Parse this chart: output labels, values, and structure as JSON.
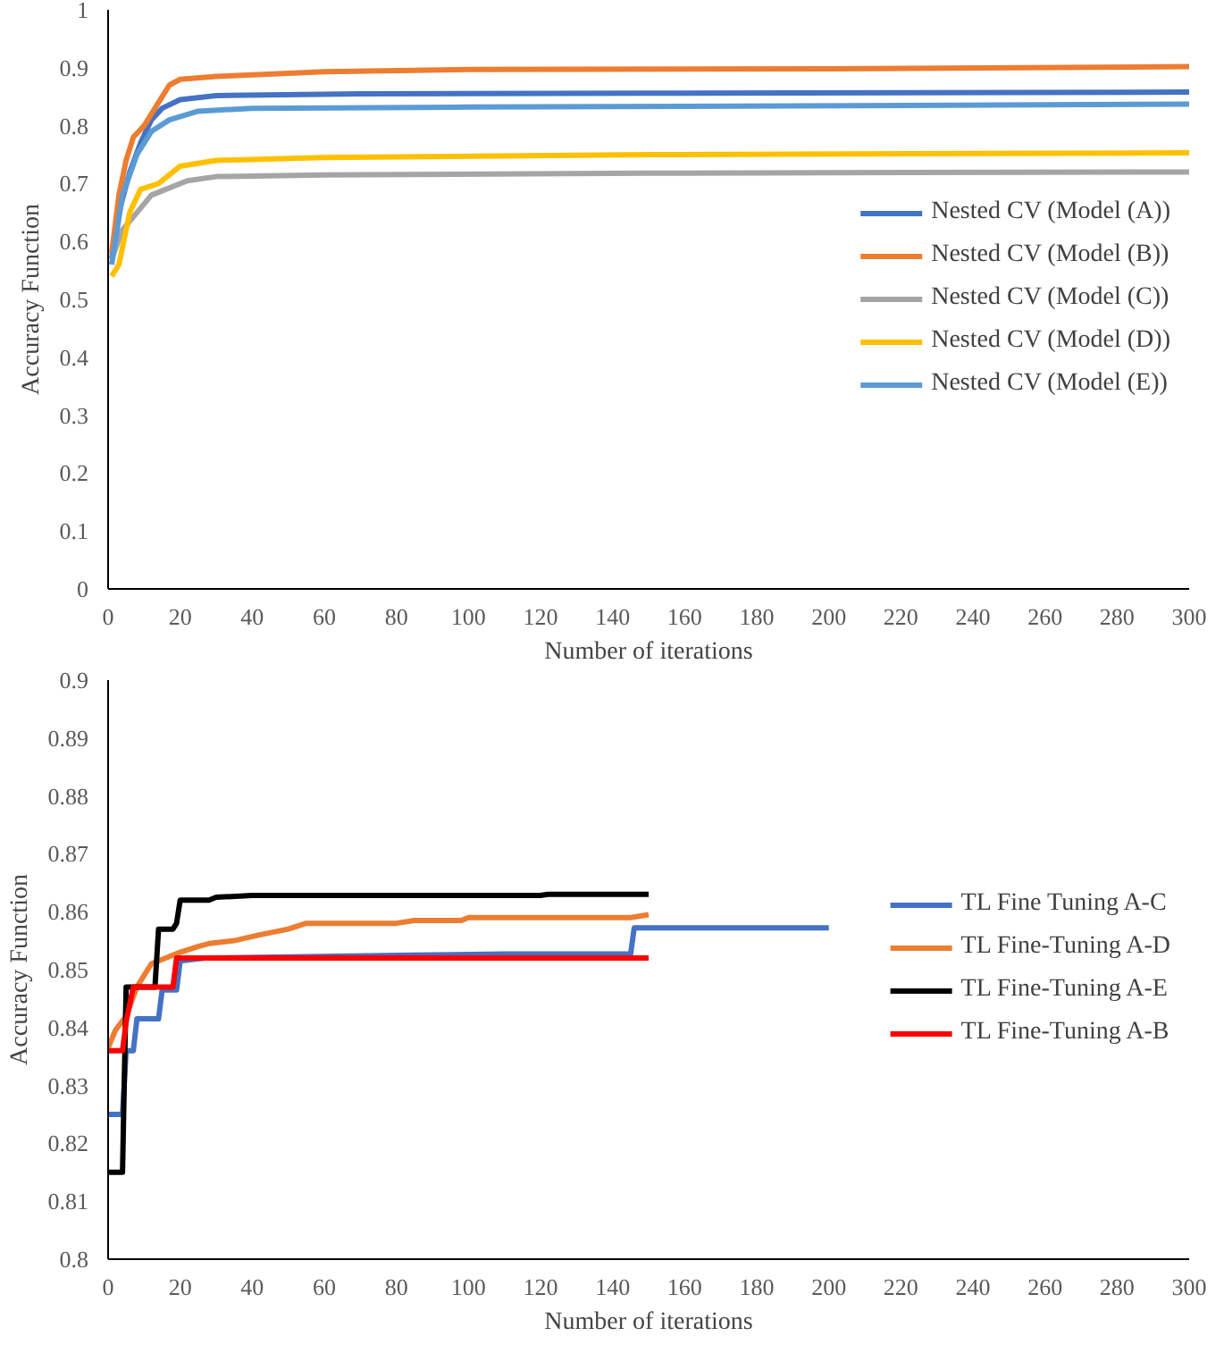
{
  "chart_data": [
    {
      "type": "line",
      "xlabel": "Number of iterations",
      "ylabel": "Accuracy Function",
      "xlim": [
        0,
        300
      ],
      "ylim": [
        0,
        1
      ],
      "xticks": [
        0,
        20,
        40,
        60,
        80,
        100,
        120,
        140,
        160,
        180,
        200,
        220,
        240,
        260,
        280,
        300
      ],
      "yticks": [
        0,
        0.1,
        0.2,
        0.3,
        0.4,
        0.5,
        0.6,
        0.7,
        0.8,
        0.9,
        1
      ],
      "grid": false,
      "legend": "right",
      "marker": "none",
      "line_style": "solid",
      "series": [
        {
          "name": "Nested CV (Model (A))",
          "color": "#4472c4",
          "x": [
            1,
            3,
            6,
            9,
            12,
            15,
            20,
            30,
            70,
            150,
            300
          ],
          "values": [
            0.57,
            0.65,
            0.72,
            0.77,
            0.81,
            0.83,
            0.845,
            0.852,
            0.855,
            0.856,
            0.858
          ]
        },
        {
          "name": "Nested CV (Model (B))",
          "color": "#ed7d31",
          "x": [
            1,
            3,
            5,
            7,
            10,
            14,
            17,
            20,
            30,
            60,
            100,
            200,
            300
          ],
          "values": [
            0.58,
            0.68,
            0.74,
            0.78,
            0.8,
            0.84,
            0.87,
            0.88,
            0.885,
            0.893,
            0.897,
            0.898,
            0.902
          ]
        },
        {
          "name": "Nested CV (Model (C))",
          "color": "#a5a5a5",
          "x": [
            1,
            4,
            8,
            12,
            16,
            22,
            30,
            60,
            150,
            300
          ],
          "values": [
            0.57,
            0.62,
            0.65,
            0.68,
            0.69,
            0.705,
            0.712,
            0.715,
            0.718,
            0.72
          ]
        },
        {
          "name": "Nested CV (Model (D))",
          "color": "#ffc000",
          "x": [
            1,
            3,
            6,
            9,
            14,
            20,
            30,
            60,
            150,
            300
          ],
          "values": [
            0.54,
            0.56,
            0.65,
            0.69,
            0.7,
            0.73,
            0.74,
            0.745,
            0.75,
            0.753
          ]
        },
        {
          "name": "Nested CV (Model (E))",
          "color": "#5b9bd5",
          "x": [
            1,
            4,
            8,
            12,
            17,
            25,
            40,
            100,
            300
          ],
          "values": [
            0.56,
            0.68,
            0.75,
            0.79,
            0.81,
            0.825,
            0.83,
            0.832,
            0.837
          ]
        }
      ]
    },
    {
      "type": "line",
      "xlabel": "Number of iterations",
      "ylabel": "Accuracy Function",
      "xlim": [
        0,
        300
      ],
      "ylim": [
        0.8,
        0.9
      ],
      "xticks": [
        0,
        20,
        40,
        60,
        80,
        100,
        120,
        140,
        160,
        180,
        200,
        220,
        240,
        260,
        280,
        300
      ],
      "yticks": [
        0.8,
        0.81,
        0.82,
        0.83,
        0.84,
        0.85,
        0.86,
        0.87,
        0.88,
        0.89,
        0.9
      ],
      "grid": false,
      "legend": "right",
      "marker": "none",
      "line_style": "solid",
      "series": [
        {
          "name": "TL Fine Tuning A-C",
          "color": "#4472c4",
          "x": [
            0,
            4,
            5,
            7,
            8,
            14,
            15,
            19,
            20,
            27,
            85,
            110,
            145,
            146,
            200
          ],
          "values": [
            0.825,
            0.825,
            0.836,
            0.836,
            0.8415,
            0.8415,
            0.8465,
            0.8465,
            0.8515,
            0.852,
            0.8525,
            0.8527,
            0.8527,
            0.8572,
            0.8572
          ]
        },
        {
          "name": "TL Fine-Tuning A-D",
          "color": "#ed7d31",
          "x": [
            0,
            2,
            5,
            8,
            12,
            16,
            20,
            25,
            28,
            35,
            42,
            50,
            55,
            80,
            85,
            98,
            100,
            145,
            150
          ],
          "values": [
            0.8365,
            0.8395,
            0.842,
            0.847,
            0.851,
            0.852,
            0.853,
            0.854,
            0.8545,
            0.855,
            0.856,
            0.857,
            0.858,
            0.858,
            0.8585,
            0.8585,
            0.859,
            0.859,
            0.8595
          ]
        },
        {
          "name": "TL Fine-Tuning A-E",
          "color": "#000000",
          "x": [
            0,
            4,
            5,
            13,
            14,
            18,
            19,
            20,
            28,
            30,
            40,
            120,
            122,
            150
          ],
          "values": [
            0.815,
            0.815,
            0.847,
            0.847,
            0.857,
            0.857,
            0.858,
            0.862,
            0.862,
            0.8625,
            0.8628,
            0.8628,
            0.863,
            0.863
          ]
        },
        {
          "name": "TL Fine-Tuning A-B",
          "color": "#ff0000",
          "x": [
            0,
            4,
            5,
            7,
            18,
            19,
            150
          ],
          "values": [
            0.836,
            0.836,
            0.841,
            0.847,
            0.847,
            0.852,
            0.852
          ]
        }
      ]
    }
  ]
}
